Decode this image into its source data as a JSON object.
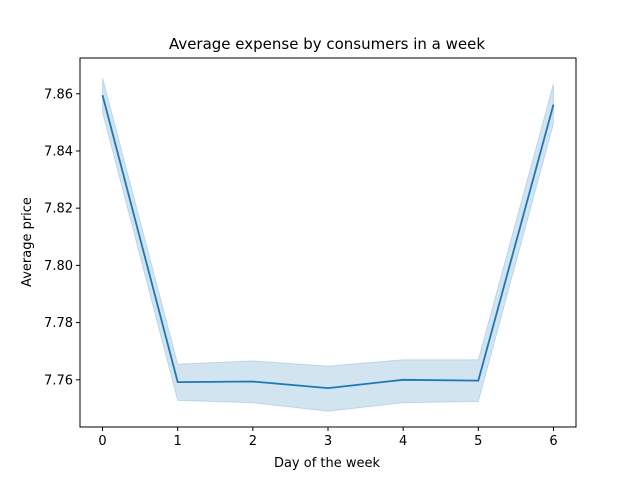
{
  "chart_data": {
    "type": "line",
    "title": "Average expense by consumers in a week",
    "xlabel": "Day of the week",
    "ylabel": "Average price",
    "x": [
      0,
      1,
      2,
      3,
      4,
      5,
      6
    ],
    "xticks": [
      "0",
      "1",
      "2",
      "3",
      "4",
      "5",
      "6"
    ],
    "yticks": [
      "7.76",
      "7.78",
      "7.80",
      "7.82",
      "7.84",
      "7.86"
    ],
    "xlim": [
      -0.3,
      6.3
    ],
    "ylim": [
      7.7435,
      7.8725
    ],
    "series": [
      {
        "values": [
          7.8595,
          7.7592,
          7.7594,
          7.7571,
          7.76,
          7.7597,
          7.8562
        ],
        "ci_lower": [
          7.8535,
          7.7528,
          7.752,
          7.749,
          7.752,
          7.7524,
          7.8495
        ],
        "ci_upper": [
          7.8655,
          7.7655,
          7.7666,
          7.7648,
          7.767,
          7.767,
          7.8635
        ],
        "color": "#1f77b4"
      }
    ],
    "grid": false,
    "legend": "none"
  }
}
